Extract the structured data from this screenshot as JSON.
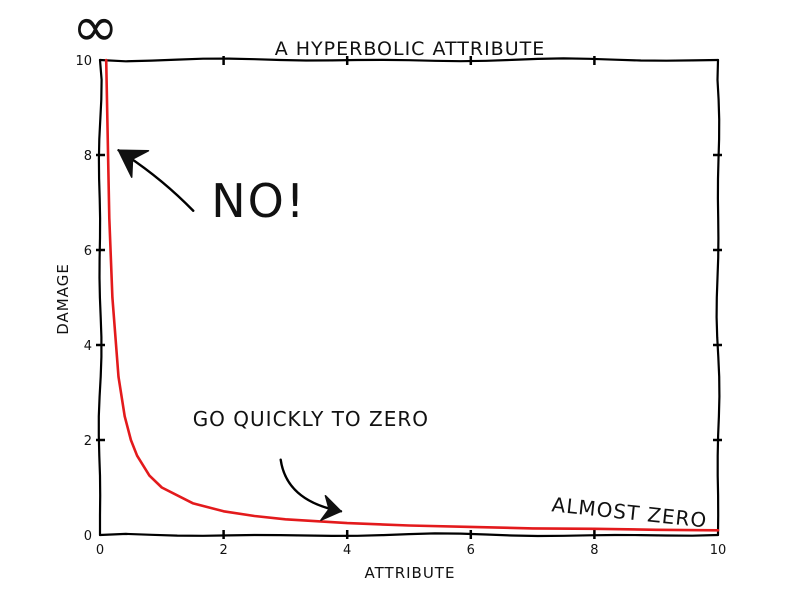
{
  "chart_data": {
    "type": "line",
    "title": "A HYPERBOLIC ATTRIBUTE",
    "xlabel": "ATTRIBUTE",
    "ylabel": "DAMAGE",
    "xlim": [
      0,
      10
    ],
    "ylim": [
      0,
      10
    ],
    "xticks": [
      "0",
      "2",
      "4",
      "6",
      "8",
      "10"
    ],
    "yticks": [
      "0",
      "2",
      "4",
      "6",
      "8",
      "10"
    ],
    "grid": false,
    "legend": "none",
    "infinity_symbol": "∞",
    "series": [
      {
        "color": "#e31a1c",
        "x": [
          0.1,
          0.15,
          0.2,
          0.3,
          0.4,
          0.5,
          0.6,
          0.8,
          1.0,
          1.5,
          2.0,
          2.5,
          3.0,
          3.5,
          4.0,
          5.0,
          6.0,
          7.0,
          8.0,
          9.0,
          10.0
        ],
        "y": [
          10.0,
          6.67,
          5.0,
          3.33,
          2.5,
          2.0,
          1.67,
          1.25,
          1.0,
          0.67,
          0.5,
          0.4,
          0.33,
          0.29,
          0.25,
          0.2,
          0.17,
          0.14,
          0.13,
          0.11,
          0.1
        ]
      }
    ],
    "annotations": [
      {
        "text": "NO!",
        "x": 1.8,
        "y": 6.7,
        "arrow_to": [
          0.3,
          8.1
        ]
      },
      {
        "text": "GO QUICKLY TO ZERO",
        "x": 1.5,
        "y": 2.3,
        "arrow_to": [
          3.9,
          0.5
        ]
      },
      {
        "text": "ALMOST ZERO",
        "x": 7.3,
        "y": 0.5
      }
    ]
  }
}
